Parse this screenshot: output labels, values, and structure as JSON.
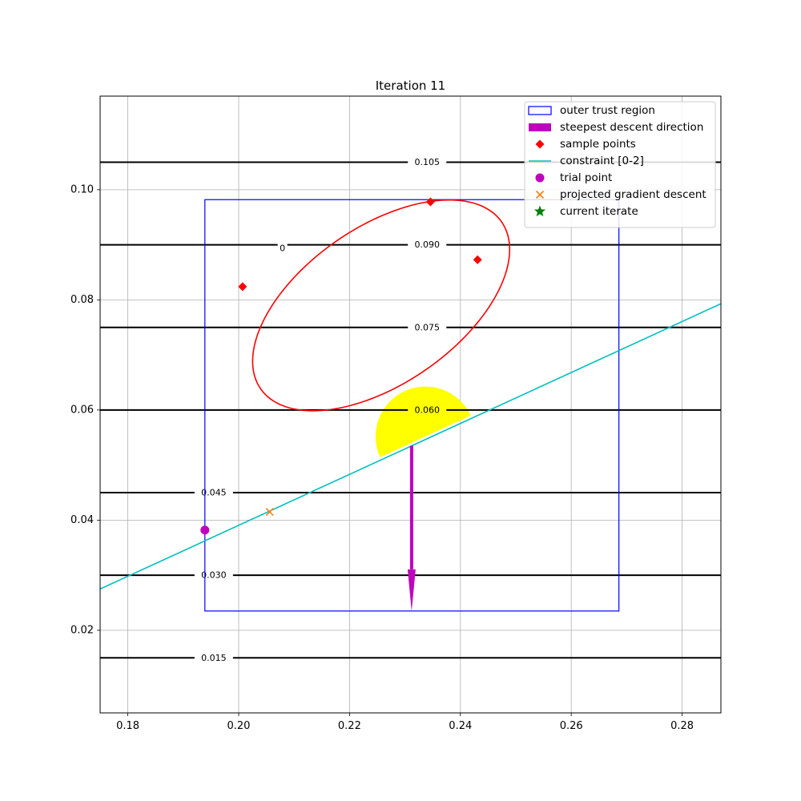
{
  "chart_data": {
    "type": "line",
    "title": "Iteration 11",
    "xlim": [
      0.175,
      0.287
    ],
    "ylim": [
      0.005,
      0.117
    ],
    "x_ticks": [
      0.18,
      0.2,
      0.22,
      0.24,
      0.26,
      0.28
    ],
    "x_tick_labels": [
      "0.18",
      "0.20",
      "0.22",
      "0.24",
      "0.26",
      "0.28"
    ],
    "y_ticks": [
      0.02,
      0.04,
      0.06,
      0.08,
      0.1
    ],
    "y_tick_labels": [
      "0.02",
      "0.04",
      "0.06",
      "0.08",
      "0.10"
    ],
    "grid": true,
    "legend_placement": "top-right",
    "contours": [
      {
        "level": 0.015,
        "label": "0.015",
        "label_x": 0.1955
      },
      {
        "level": 0.03,
        "label": "0.030",
        "label_x": 0.1955
      },
      {
        "level": 0.045,
        "label": "0.045",
        "label_x": 0.1955
      },
      {
        "level": 0.06,
        "label": "0.060",
        "label_x": 0.234
      },
      {
        "level": 0.075,
        "label": "0.075",
        "label_x": 0.234
      },
      {
        "level": 0.09,
        "label": "0.090",
        "label_x": 0.234
      },
      {
        "level": 0.105,
        "label": "0.105",
        "label_x": 0.234
      }
    ],
    "contour_color": "#000000",
    "outer_trust_region": {
      "x0": 0.1939,
      "x1": 0.2686,
      "y0": 0.0235,
      "y1": 0.0982,
      "color": "#0000ff"
    },
    "ellipse": {
      "cx": 0.2257,
      "cy": 0.079,
      "rx": 0.0265,
      "ry": 0.0142,
      "angle_deg": 35,
      "color": "#ff0000",
      "label": "0",
      "label_x": 0.2079,
      "label_y": 0.0894
    },
    "sample_points": {
      "x": [
        0.2007,
        0.2346,
        0.2431
      ],
      "y": [
        0.0824,
        0.0978,
        0.0873
      ],
      "color": "#ff0000"
    },
    "constraint_line": {
      "x": [
        0.175,
        0.287
      ],
      "y": [
        0.0275,
        0.0793
      ],
      "color": "#00bfbf"
    },
    "feasible_half_disk": {
      "cx": 0.2337,
      "cy": 0.0552,
      "r": 0.009,
      "color": "#ffff00"
    },
    "steepest_descent": {
      "x": 0.2312,
      "y_start": 0.0535,
      "y_end": 0.0235,
      "color": "#bf00bf"
    },
    "trial_point": {
      "x": 0.1939,
      "y": 0.0382,
      "color": "#bf00bf"
    },
    "projected_gradient_descent": {
      "x": 0.2056,
      "y": 0.0415,
      "color": "#ff7f0e"
    },
    "current_iterate": {
      "x": 0.2312,
      "y": 0.0535,
      "color": "#008000"
    },
    "legend": [
      {
        "label": "outer trust region",
        "marker": "rect",
        "color": "#0000ff"
      },
      {
        "label": "steepest descent direction",
        "marker": "bar",
        "color": "#bf00bf"
      },
      {
        "label": "sample points",
        "marker": "diamond",
        "color": "#ff0000"
      },
      {
        "label": "constraint [0-2]",
        "marker": "line",
        "color": "#00bfbf"
      },
      {
        "label": "trial point",
        "marker": "circle",
        "color": "#bf00bf"
      },
      {
        "label": "projected gradient descent",
        "marker": "x",
        "color": "#ff7f0e"
      },
      {
        "label": "current iterate",
        "marker": "star",
        "color": "#008000"
      }
    ]
  }
}
